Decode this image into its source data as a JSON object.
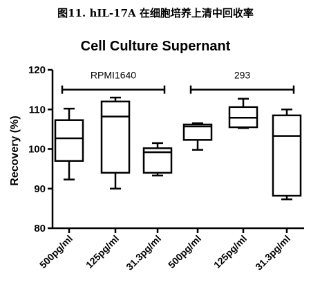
{
  "figure_caption": "图11. hIL-17A 在细胞培养上清中回收率",
  "chart_data": {
    "type": "box",
    "title": "Cell Culture Supernant",
    "xlabel": "",
    "ylabel": "Recovery (%)",
    "ylim": [
      80,
      120
    ],
    "yticks": [
      80,
      90,
      100,
      110,
      120
    ],
    "categories": [
      "500pg/ml",
      "125pg/ml",
      "31.3pg/ml",
      "500pg/ml",
      "125pg/ml",
      "31.3pg/ml"
    ],
    "boxes": [
      {
        "category": "500pg/ml",
        "min": 92.3,
        "q1": 97.0,
        "median": 102.7,
        "q3": 107.3,
        "max": 110.2
      },
      {
        "category": "125pg/ml",
        "min": 90.0,
        "q1": 94.0,
        "median": 108.2,
        "q3": 112.0,
        "max": 113.0
      },
      {
        "category": "31.3pg/ml",
        "min": 93.3,
        "q1": 94.0,
        "median": 99.2,
        "q3": 100.2,
        "max": 101.5
      },
      {
        "category": "500pg/ml",
        "min": 99.8,
        "q1": 102.3,
        "median": 105.7,
        "q3": 106.2,
        "max": 106.5
      },
      {
        "category": "125pg/ml",
        "min": 105.3,
        "q1": 105.5,
        "median": 107.9,
        "q3": 110.6,
        "max": 112.7
      },
      {
        "category": "31.3pg/ml",
        "min": 87.3,
        "q1": 88.2,
        "median": 103.3,
        "q3": 108.5,
        "max": 110.0
      }
    ],
    "groups": [
      {
        "label": "RPMI1640",
        "categories": [
          0,
          1,
          2
        ],
        "bracket_y": 115
      },
      {
        "label": "293",
        "categories": [
          3,
          4,
          5
        ],
        "bracket_y": 115
      }
    ],
    "grid": false,
    "legend": "none"
  }
}
